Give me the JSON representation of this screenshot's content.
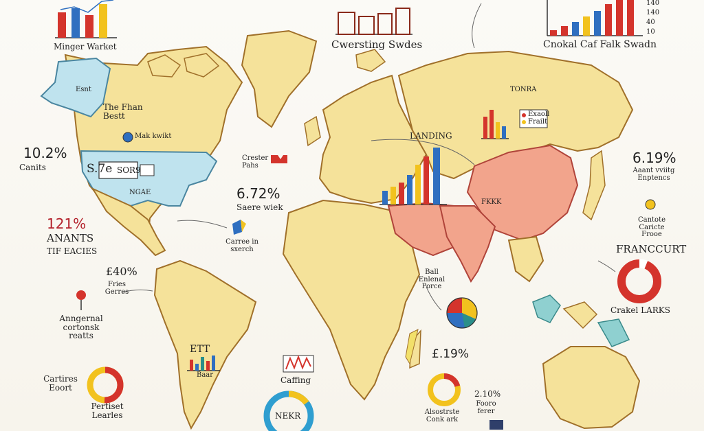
{
  "labels": {
    "minger_market": "Minger Warket",
    "cwersting_swdes": "Cwersting Swdes",
    "cnokal_caf_falk_swadn": "Cnokal Caf Falk Swadn",
    "esnt": "Esnt",
    "the_fhan_bestt": "The Fhan Bestt",
    "mak_kwikt": "Mak kwikt",
    "pct_10_2": "10.2%",
    "canits": "Canits",
    "s_7e": "S.7e",
    "sorig": "SOR9",
    "ngae": "NGAE",
    "crester_pahs": "Crester Pahs",
    "pct_6_72": "6.72%",
    "saere_wiek": "Saere wiek",
    "pct_121": "121%",
    "anants": "ANANTS",
    "tir_eacies": "TIF EACIES",
    "carree_in_sxerch": "Carree in sxerch",
    "pct_e_40": "£40%",
    "fries_gerres": "Fries Gerres",
    "anngernal_cortonsk_reatts": "Anngernal cortonsk reatts",
    "cartires_eoort": "Cartires Eoort",
    "pertiset_learles": "Pertiset Learles",
    "ett": "ETT",
    "baar": "Baar",
    "caffing": "Caffing",
    "nekr": "NEKR",
    "pct_e_19": "£.19%",
    "alsostrste_conk_ark": "Alsostrste Conk ark",
    "pct_2_10": "2.10%",
    "fooro_ferer": "Fooro ferer",
    "ball_enlenal_porce": "Ball Enlenal Porce",
    "landing": "LANDING",
    "tonra": "TONRA",
    "exaoll_frailt": "Exaoll Frailt",
    "fkkk": "FKKK",
    "pct_6_19": "6.19%",
    "aaant_vviitg_enptencs": "Aaant vviitg Enptencs",
    "cantote_caricte_frooe": "Cantote Caricte Frooe",
    "franccurt": "FRANCCURT",
    "crakel_larks": "Crakel LARKS",
    "tick_140": "140",
    "tick_140b": "140",
    "tick_40": "40",
    "tick_10": "10"
  },
  "colors": {
    "land": "#f5e29a",
    "land_outline": "#b07a2a",
    "north_america_blue": "#bfe3ee",
    "asia_red": "#f2a48c",
    "bar_red": "#d4342c",
    "bar_blue": "#2f6fc0",
    "bar_yellow": "#f2c21e",
    "bar_teal": "#2a8f8a"
  },
  "icons": [
    "pushpin-icon",
    "bar-chart-icon",
    "donut-chart-icon",
    "pie-chart-icon",
    "flag-icon"
  ]
}
